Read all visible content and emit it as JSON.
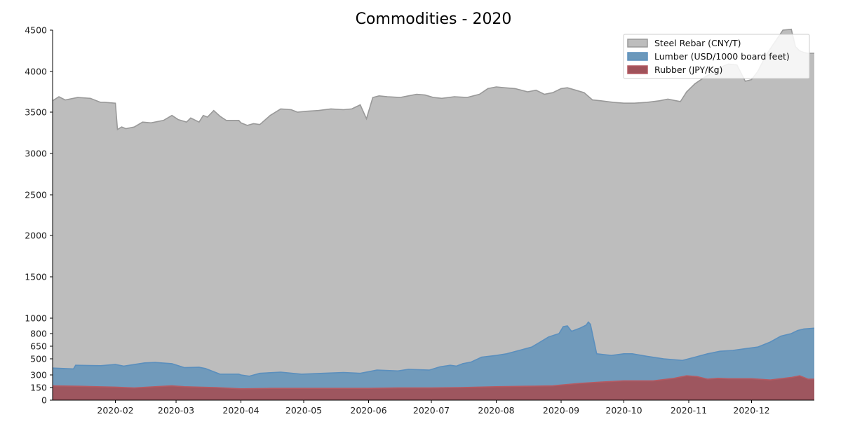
{
  "chart_data": {
    "type": "area",
    "title": "Commodities - 2020",
    "stacked": false,
    "legend_position": "top-right",
    "grid": false,
    "xlabel": "",
    "ylabel": "",
    "x_range": [
      "2020-01-02",
      "2020-12-31"
    ],
    "x_ticks": [
      "2020-02-01",
      "2020-03-01",
      "2020-04-01",
      "2020-05-01",
      "2020-06-01",
      "2020-07-01",
      "2020-08-01",
      "2020-09-01",
      "2020-10-01",
      "2020-11-01",
      "2020-12-01"
    ],
    "x_tick_labels": [
      "2020-02",
      "2020-03",
      "2020-04",
      "2020-05",
      "2020-06",
      "2020-07",
      "2020-08",
      "2020-09",
      "2020-10",
      "2020-11",
      "2020-12"
    ],
    "y_ticks": [
      0,
      150,
      300,
      500,
      650,
      800,
      1000,
      1500,
      2000,
      2500,
      3000,
      3500,
      4000,
      4500
    ],
    "y_tick_labels": [
      "0",
      "150",
      "300",
      "500",
      "650",
      "800",
      "1000",
      "1500",
      "2000",
      "2500",
      "3000",
      "3500",
      "4000",
      "4500"
    ],
    "series": [
      {
        "name": "Steel Rebar (CNY/T)",
        "color": "#bdbdbd",
        "edge": "#999999",
        "x": [
          "2020-01-02",
          "2020-01-05",
          "2020-01-08",
          "2020-01-14",
          "2020-01-20",
          "2020-01-25",
          "2020-01-27",
          "2020-02-01",
          "2020-02-02",
          "2020-02-04",
          "2020-02-06",
          "2020-02-10",
          "2020-02-14",
          "2020-02-18",
          "2020-02-24",
          "2020-02-28",
          "2020-03-02",
          "2020-03-06",
          "2020-03-08",
          "2020-03-12",
          "2020-03-14",
          "2020-03-16",
          "2020-03-19",
          "2020-03-22",
          "2020-03-25",
          "2020-03-31",
          "2020-04-01",
          "2020-04-04",
          "2020-04-07",
          "2020-04-10",
          "2020-04-15",
          "2020-04-20",
          "2020-04-25",
          "2020-04-28",
          "2020-05-02",
          "2020-05-08",
          "2020-05-14",
          "2020-05-20",
          "2020-05-24",
          "2020-05-28",
          "2020-05-31",
          "2020-06-03",
          "2020-06-06",
          "2020-06-10",
          "2020-06-16",
          "2020-06-20",
          "2020-06-24",
          "2020-06-28",
          "2020-07-02",
          "2020-07-06",
          "2020-07-12",
          "2020-07-18",
          "2020-07-24",
          "2020-07-28",
          "2020-08-01",
          "2020-08-05",
          "2020-08-10",
          "2020-08-16",
          "2020-08-20",
          "2020-08-24",
          "2020-08-28",
          "2020-09-01",
          "2020-09-04",
          "2020-09-08",
          "2020-09-12",
          "2020-09-16",
          "2020-09-20",
          "2020-09-26",
          "2020-10-01",
          "2020-10-06",
          "2020-10-12",
          "2020-10-18",
          "2020-10-22",
          "2020-10-26",
          "2020-10-28",
          "2020-10-31",
          "2020-11-04",
          "2020-11-08",
          "2020-11-13",
          "2020-11-16",
          "2020-11-20",
          "2020-11-24",
          "2020-11-28",
          "2020-12-01",
          "2020-12-04",
          "2020-12-08",
          "2020-12-12",
          "2020-12-16",
          "2020-12-20",
          "2020-12-22",
          "2020-12-24",
          "2020-12-26",
          "2020-12-28",
          "2020-12-31"
        ],
        "values": [
          3640,
          3690,
          3650,
          3680,
          3670,
          3620,
          3620,
          3610,
          3290,
          3320,
          3300,
          3320,
          3380,
          3370,
          3400,
          3460,
          3410,
          3380,
          3430,
          3380,
          3460,
          3440,
          3520,
          3450,
          3400,
          3400,
          3370,
          3340,
          3360,
          3350,
          3460,
          3540,
          3530,
          3500,
          3510,
          3520,
          3540,
          3530,
          3540,
          3590,
          3420,
          3680,
          3700,
          3690,
          3680,
          3700,
          3720,
          3710,
          3680,
          3670,
          3690,
          3680,
          3720,
          3790,
          3810,
          3800,
          3790,
          3750,
          3770,
          3720,
          3740,
          3790,
          3800,
          3770,
          3740,
          3650,
          3640,
          3620,
          3610,
          3610,
          3620,
          3640,
          3660,
          3640,
          3630,
          3750,
          3850,
          3920,
          4000,
          4050,
          4090,
          4080,
          3880,
          3900,
          4000,
          4200,
          4350,
          4500,
          4510,
          4300,
          4250,
          4230,
          4220,
          4220
        ]
      },
      {
        "name": "Lumber (USD/1000 board feet)",
        "color": "#6b98bb",
        "edge": "#5b8fbd",
        "x": [
          "2020-01-02",
          "2020-01-12",
          "2020-01-13",
          "2020-01-25",
          "2020-02-01",
          "2020-02-05",
          "2020-02-15",
          "2020-02-20",
          "2020-02-28",
          "2020-03-05",
          "2020-03-12",
          "2020-03-15",
          "2020-03-22",
          "2020-03-31",
          "2020-04-01",
          "2020-04-05",
          "2020-04-10",
          "2020-04-20",
          "2020-04-30",
          "2020-05-10",
          "2020-05-20",
          "2020-05-28",
          "2020-06-05",
          "2020-06-15",
          "2020-06-20",
          "2020-06-30",
          "2020-07-05",
          "2020-07-10",
          "2020-07-13",
          "2020-07-16",
          "2020-07-20",
          "2020-07-25",
          "2020-08-01",
          "2020-08-06",
          "2020-08-12",
          "2020-08-18",
          "2020-08-22",
          "2020-08-26",
          "2020-08-31",
          "2020-09-02",
          "2020-09-04",
          "2020-09-06",
          "2020-09-10",
          "2020-09-13",
          "2020-09-14",
          "2020-09-15",
          "2020-09-18",
          "2020-09-25",
          "2020-10-01",
          "2020-10-05",
          "2020-10-12",
          "2020-10-20",
          "2020-10-29",
          "2020-11-04",
          "2020-11-10",
          "2020-11-16",
          "2020-11-22",
          "2020-11-28",
          "2020-12-04",
          "2020-12-10",
          "2020-12-15",
          "2020-12-20",
          "2020-12-23",
          "2020-12-26",
          "2020-12-31"
        ],
        "values": [
          385,
          375,
          420,
          415,
          430,
          410,
          450,
          455,
          440,
          390,
          395,
          380,
          310,
          310,
          300,
          285,
          320,
          335,
          310,
          320,
          330,
          320,
          360,
          350,
          370,
          360,
          400,
          420,
          410,
          440,
          460,
          520,
          540,
          560,
          600,
          640,
          700,
          760,
          800,
          890,
          900,
          830,
          870,
          910,
          950,
          920,
          560,
          540,
          560,
          560,
          530,
          500,
          480,
          520,
          560,
          590,
          600,
          620,
          640,
          700,
          770,
          800,
          840,
          860,
          870
        ]
      },
      {
        "name": "Rubber (JPY/Kg)",
        "color": "#a0525a",
        "edge": "#b55a62",
        "x": [
          "2020-01-02",
          "2020-01-15",
          "2020-02-01",
          "2020-02-10",
          "2020-02-20",
          "2020-02-28",
          "2020-03-05",
          "2020-03-12",
          "2020-03-20",
          "2020-04-01",
          "2020-04-15",
          "2020-05-01",
          "2020-05-15",
          "2020-06-01",
          "2020-06-15",
          "2020-07-01",
          "2020-07-15",
          "2020-08-01",
          "2020-08-15",
          "2020-08-28",
          "2020-09-01",
          "2020-09-10",
          "2020-09-20",
          "2020-10-01",
          "2020-10-15",
          "2020-10-25",
          "2020-10-31",
          "2020-11-05",
          "2020-11-10",
          "2020-11-15",
          "2020-11-20",
          "2020-12-01",
          "2020-12-10",
          "2020-12-20",
          "2020-12-24",
          "2020-12-28",
          "2020-12-31"
        ],
        "values": [
          170,
          165,
          155,
          145,
          160,
          170,
          160,
          155,
          150,
          135,
          140,
          140,
          140,
          140,
          145,
          145,
          150,
          160,
          165,
          170,
          180,
          200,
          215,
          230,
          230,
          260,
          290,
          280,
          250,
          260,
          255,
          255,
          240,
          270,
          290,
          250,
          250
        ]
      }
    ]
  }
}
